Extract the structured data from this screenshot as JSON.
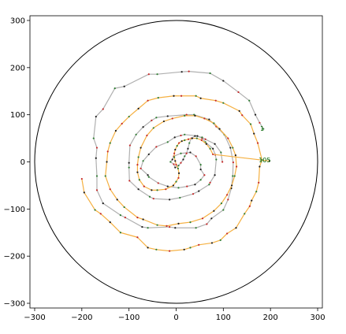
{
  "chart_data": {
    "type": "line",
    "title": "",
    "xlabel": "",
    "ylabel": "",
    "xlim": [
      -310,
      310
    ],
    "ylim": [
      -310,
      310
    ],
    "xticks": [
      -300,
      -200,
      -100,
      0,
      100,
      200,
      300
    ],
    "yticks": [
      -300,
      -200,
      -100,
      0,
      100,
      200,
      300
    ],
    "grid": false,
    "circle": {
      "cx": 0,
      "cy": 0,
      "r": 300,
      "color": "#000000"
    },
    "annotations": [
      {
        "text": "1",
        "x": 178,
        "y": 71,
        "color": "#006400"
      },
      {
        "text": "105",
        "x": 175,
        "y": 4,
        "color": "#006400"
      }
    ],
    "series": [
      {
        "color": "#b0b0b0",
        "points": [
          [
            185,
            70
          ],
          [
            177,
            83
          ],
          [
            168,
            100
          ],
          [
            155,
            130
          ],
          [
            132,
            148
          ],
          [
            100,
            172
          ],
          [
            72,
            188
          ],
          [
            27,
            192
          ],
          [
            12,
            191
          ],
          [
            -40,
            186
          ],
          [
            -58,
            186
          ],
          [
            -110,
            160
          ],
          [
            -130,
            156
          ],
          [
            -155,
            112
          ],
          [
            -170,
            96
          ],
          [
            -175,
            50
          ],
          [
            -168,
            30
          ],
          [
            -170,
            8
          ],
          [
            -168,
            -30
          ],
          [
            -168,
            -60
          ],
          [
            -155,
            -88
          ],
          [
            -118,
            -113
          ],
          [
            -108,
            -118
          ],
          [
            -72,
            -138
          ],
          [
            -60,
            -140
          ],
          [
            -14,
            -138
          ],
          [
            -2,
            -140
          ],
          [
            42,
            -140
          ],
          [
            65,
            -132
          ],
          [
            75,
            -120
          ],
          [
            100,
            -102
          ],
          [
            110,
            -80
          ],
          [
            117,
            -56
          ],
          [
            120,
            -30
          ],
          [
            121,
            -1
          ],
          [
            115,
            30
          ],
          [
            102,
            58
          ],
          [
            85,
            75
          ],
          [
            70,
            90
          ],
          [
            38,
            100
          ],
          [
            22,
            100
          ],
          [
            -18,
            97
          ],
          [
            -42,
            94
          ],
          [
            -52,
            88
          ],
          [
            -70,
            74
          ],
          [
            -85,
            58
          ],
          [
            -98,
            35
          ],
          [
            -100,
            -2
          ],
          [
            -100,
            -12
          ],
          [
            -99,
            -40
          ],
          [
            -80,
            -58
          ],
          [
            -56,
            -74
          ],
          [
            -48,
            -78
          ],
          [
            -14,
            -80
          ],
          [
            8,
            -76
          ],
          [
            36,
            -68
          ],
          [
            48,
            -62
          ],
          [
            70,
            -48
          ],
          [
            72,
            -44
          ],
          [
            82,
            -28
          ],
          [
            85,
            5
          ],
          [
            83,
            15
          ],
          [
            78,
            28
          ],
          [
            62,
            42
          ],
          [
            55,
            50
          ],
          [
            45,
            55
          ],
          [
            18,
            58
          ],
          [
            10,
            56
          ],
          [
            -3,
            52
          ],
          [
            -18,
            42
          ],
          [
            -42,
            32
          ],
          [
            -58,
            16
          ],
          [
            -70,
            2
          ],
          [
            -75,
            -14
          ],
          [
            -60,
            -28
          ],
          [
            -58,
            -32
          ],
          [
            -38,
            -45
          ],
          [
            -18,
            -52
          ],
          [
            5,
            -55
          ],
          [
            23,
            -52
          ],
          [
            40,
            -48
          ],
          [
            52,
            -38
          ],
          [
            60,
            -28
          ],
          [
            52,
            -16
          ],
          [
            52,
            -6
          ],
          [
            42,
            12
          ],
          [
            30,
            20
          ],
          [
            10,
            18
          ],
          [
            -5,
            12
          ],
          [
            -8,
            5
          ],
          [
            -12,
            0
          ],
          [
            -5,
            -5
          ],
          [
            -2,
            -12
          ],
          [
            5,
            -8
          ],
          [
            10,
            -2
          ],
          [
            15,
            5
          ],
          [
            18,
            12
          ],
          [
            22,
            18
          ],
          [
            25,
            28
          ],
          [
            28,
            40
          ],
          [
            32,
            50
          ],
          [
            40,
            55
          ],
          [
            55,
            52
          ],
          [
            62,
            48
          ],
          [
            82,
            38
          ],
          [
            95,
            20
          ],
          [
            98,
            0
          ]
        ]
      },
      {
        "color": "#f5b041",
        "points": [
          [
            -200,
            -36
          ],
          [
            -195,
            -65
          ],
          [
            -172,
            -102
          ],
          [
            -160,
            -110
          ],
          [
            -140,
            -128
          ],
          [
            -118,
            -150
          ],
          [
            -82,
            -160
          ],
          [
            -60,
            -182
          ],
          [
            -42,
            -186
          ],
          [
            -14,
            -189
          ],
          [
            17,
            -186
          ],
          [
            30,
            -182
          ],
          [
            48,
            -176
          ],
          [
            76,
            -172
          ],
          [
            94,
            -166
          ],
          [
            108,
            -152
          ],
          [
            127,
            -140
          ],
          [
            145,
            -110
          ],
          [
            156,
            -94
          ],
          [
            160,
            -82
          ],
          [
            170,
            -63
          ],
          [
            175,
            -44
          ],
          [
            177,
            -10
          ],
          [
            182,
            4
          ],
          [
            173,
            40
          ],
          [
            165,
            60
          ],
          [
            158,
            80
          ],
          [
            140,
            99
          ],
          [
            134,
            108
          ],
          [
            100,
            125
          ],
          [
            84,
            130
          ],
          [
            52,
            135
          ],
          [
            42,
            140
          ],
          [
            11,
            140
          ],
          [
            -5,
            140
          ],
          [
            -38,
            136
          ],
          [
            -60,
            130
          ],
          [
            -80,
            113
          ],
          [
            -100,
            96
          ],
          [
            -115,
            81
          ],
          [
            -128,
            66
          ],
          [
            -140,
            40
          ],
          [
            -145,
            22
          ],
          [
            -147,
            0
          ],
          [
            -150,
            -30
          ],
          [
            -140,
            -58
          ],
          [
            -125,
            -80
          ],
          [
            -110,
            -96
          ],
          [
            -82,
            -118
          ],
          [
            -70,
            -122
          ],
          [
            -40,
            -134
          ],
          [
            -20,
            -136
          ],
          [
            5,
            -131
          ],
          [
            30,
            -128
          ],
          [
            56,
            -120
          ],
          [
            80,
            -104
          ],
          [
            96,
            -88
          ],
          [
            108,
            -70
          ],
          [
            118,
            -50
          ],
          [
            124,
            -30
          ],
          [
            128,
            -10
          ],
          [
            126,
            14
          ],
          [
            120,
            30
          ],
          [
            110,
            50
          ],
          [
            92,
            70
          ],
          [
            80,
            82
          ],
          [
            60,
            92
          ],
          [
            40,
            98
          ],
          [
            18,
            98
          ],
          [
            -8,
            92
          ],
          [
            -26,
            86
          ],
          [
            -48,
            72
          ],
          [
            -62,
            56
          ],
          [
            -75,
            30
          ],
          [
            -80,
            10
          ],
          [
            -82,
            -6
          ],
          [
            -82,
            -22
          ],
          [
            -78,
            -38
          ],
          [
            -68,
            -52
          ],
          [
            -52,
            -60
          ],
          [
            -40,
            -60
          ],
          [
            -22,
            -58
          ],
          [
            -6,
            -50
          ],
          [
            0,
            -42
          ],
          [
            5,
            -34
          ],
          [
            6,
            -24
          ],
          [
            4,
            -14
          ],
          [
            0,
            -6
          ],
          [
            -2,
            2
          ],
          [
            -4,
            10
          ],
          [
            -4,
            18
          ],
          [
            -2,
            26
          ],
          [
            2,
            34
          ],
          [
            6,
            40
          ],
          [
            12,
            44
          ],
          [
            18,
            46
          ],
          [
            26,
            48
          ],
          [
            34,
            50
          ],
          [
            44,
            50
          ],
          [
            54,
            46
          ],
          [
            64,
            38
          ],
          [
            72,
            28
          ],
          [
            78,
            16
          ],
          [
            198,
            2
          ]
        ]
      }
    ]
  }
}
